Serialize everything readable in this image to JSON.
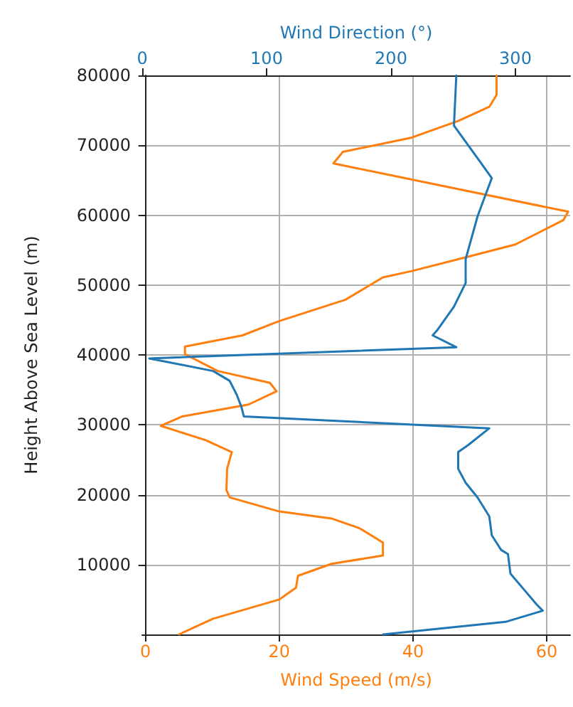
{
  "chart_data": {
    "type": "line",
    "xlabel": "Wind Speed (m/s)",
    "x2label": "Wind Direction (°)",
    "ylabel": "Height Above Sea Level (m)",
    "xlim": [
      -0.5,
      63.5
    ],
    "xticks": [
      0,
      20,
      40,
      60
    ],
    "x2lim": [
      0,
      344
    ],
    "x2ticks": [
      0,
      100,
      200,
      300
    ],
    "ylim": [
      0,
      80000
    ],
    "yticks": [
      10000,
      20000,
      30000,
      40000,
      50000,
      60000,
      70000,
      80000
    ],
    "grid": true,
    "marker": "none",
    "line_style": "solid",
    "series": [
      {
        "color": "#ff7f0e",
        "x": [
          5,
          10.1,
          20,
          22.5,
          22.8,
          27.8,
          35.5,
          35.5,
          32,
          27.8,
          20,
          12.6,
          12.1,
          12.2,
          12.9,
          9,
          2.3,
          5.5,
          15.4,
          19.6,
          18.6,
          10.8,
          5.9,
          5.9,
          14.5,
          20,
          29.9,
          35.5,
          39.8,
          48.2,
          55.3,
          62.5,
          63.2,
          28.1,
          29.5,
          39.8,
          46.8,
          51.4,
          52.5,
          52.5
        ],
        "values": [
          0,
          2250,
          5000,
          6700,
          8400,
          10100,
          11300,
          13150,
          15200,
          16600,
          17600,
          19600,
          20650,
          23700,
          26100,
          27800,
          29850,
          31200,
          32900,
          34800,
          36000,
          37700,
          40100,
          41200,
          42800,
          44850,
          47900,
          51100,
          52000,
          54050,
          55800,
          59300,
          60500,
          67400,
          69050,
          71100,
          73500,
          75500,
          77200,
          80000
        ]
      },
      {
        "color": "#1f77b4",
        "axis": "x2",
        "x": [
          193.6,
          292,
          322,
          317,
          307.5,
          296,
          294,
          288.5,
          281,
          279,
          269.6,
          260,
          254,
          254,
          262,
          279,
          81.7,
          79.7,
          76,
          70.3,
          57,
          5.7,
          252.5,
          233.5,
          237,
          250.6,
          260,
          260,
          269.6,
          281,
          271.4,
          250.6,
          252.5
        ],
        "values": [
          0,
          1800,
          3400,
          4300,
          6300,
          8700,
          11500,
          12100,
          14200,
          16900,
          19600,
          21700,
          23700,
          26100,
          27100,
          29500,
          31200,
          32600,
          34300,
          36300,
          37700,
          39500,
          41100,
          42800,
          43500,
          46900,
          50300,
          53700,
          59850,
          65300,
          67700,
          72800,
          80000
        ]
      }
    ]
  }
}
